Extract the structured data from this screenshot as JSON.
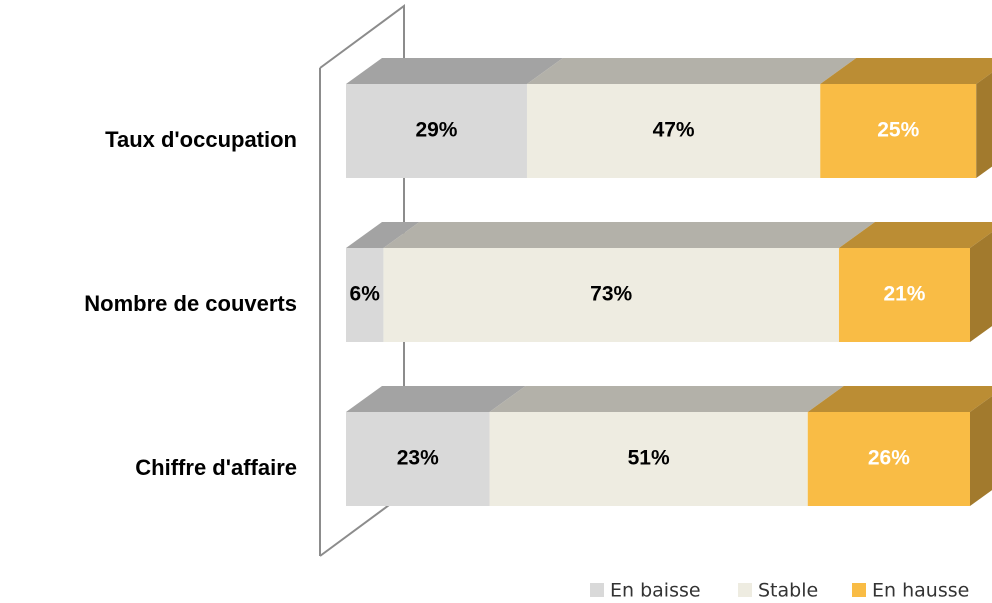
{
  "chart_data": {
    "type": "bar3d_stacked_horizontal",
    "categories": [
      "Taux d'occupation",
      "Nombre de couverts",
      "Chiffre d'affaire"
    ],
    "series": [
      {
        "name": "En baisse",
        "color": "#d9d9d9",
        "values": [
          29,
          6,
          23
        ],
        "value_labels": [
          "29%",
          "6%",
          "23%"
        ]
      },
      {
        "name": "Stable",
        "color": "#eeece1",
        "values": [
          47,
          73,
          51
        ],
        "value_labels": [
          "47%",
          "73%",
          "51%"
        ]
      },
      {
        "name": "En hausse",
        "color": "#f9bc45",
        "values": [
          25,
          21,
          26
        ],
        "value_labels": [
          "25%",
          "21%",
          "26%"
        ]
      }
    ]
  }
}
